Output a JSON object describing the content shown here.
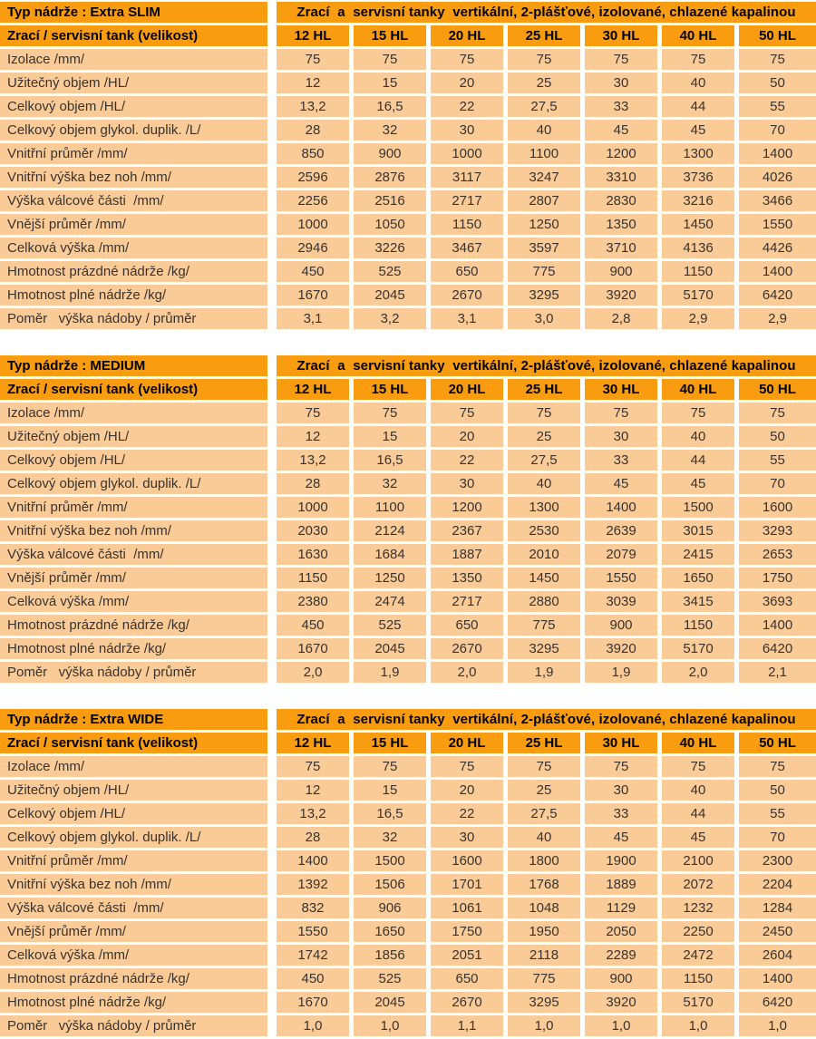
{
  "colors": {
    "header_orange": "#F99C0F",
    "row_peach": "#FBCB97",
    "separator_white": "#FFFFFF",
    "header_text": "#000000",
    "body_text": "#363330"
  },
  "shared": {
    "subtitle": "Zrací  a  servisní tanky  vertikální, 2-plášťové, izolované, chlazené kapalinou",
    "size_row_label": "Zrací / servisní tank (velikost)",
    "sizes": [
      "12 HL",
      "15 HL",
      "20 HL",
      "25 HL",
      "30 HL",
      "40 HL",
      "50 HL"
    ],
    "row_labels": [
      "Izolace /mm/",
      "Užitečný objem /HL/",
      "Celkový objem /HL/",
      "Celkový objem glykol. duplik. /L/",
      "Vnitřní průměr /mm/",
      "Vnitřní výška bez noh /mm/",
      "Výška válcové části  /mm/",
      "Vnější průměr /mm/",
      "Celková výška /mm/",
      "Hmotnost prázdné nádrže /kg/",
      "Hmotnost plné nádrže /kg/",
      "Poměr   výška nádoby / průměr"
    ]
  },
  "tables": [
    {
      "title": "Typ nádrže : Extra SLIM",
      "values": [
        [
          "75",
          "75",
          "75",
          "75",
          "75",
          "75",
          "75"
        ],
        [
          "12",
          "15",
          "20",
          "25",
          "30",
          "40",
          "50"
        ],
        [
          "13,2",
          "16,5",
          "22",
          "27,5",
          "33",
          "44",
          "55"
        ],
        [
          "28",
          "32",
          "30",
          "40",
          "45",
          "45",
          "70"
        ],
        [
          "850",
          "900",
          "1000",
          "1100",
          "1200",
          "1300",
          "1400"
        ],
        [
          "2596",
          "2876",
          "3117",
          "3247",
          "3310",
          "3736",
          "4026"
        ],
        [
          "2256",
          "2516",
          "2717",
          "2807",
          "2830",
          "3216",
          "3466"
        ],
        [
          "1000",
          "1050",
          "1150",
          "1250",
          "1350",
          "1450",
          "1550"
        ],
        [
          "2946",
          "3226",
          "3467",
          "3597",
          "3710",
          "4136",
          "4426"
        ],
        [
          "450",
          "525",
          "650",
          "775",
          "900",
          "1150",
          "1400"
        ],
        [
          "1670",
          "2045",
          "2670",
          "3295",
          "3920",
          "5170",
          "6420"
        ],
        [
          "3,1",
          "3,2",
          "3,1",
          "3,0",
          "2,8",
          "2,9",
          "2,9"
        ]
      ]
    },
    {
      "title": "Typ nádrže : MEDIUM",
      "values": [
        [
          "75",
          "75",
          "75",
          "75",
          "75",
          "75",
          "75"
        ],
        [
          "12",
          "15",
          "20",
          "25",
          "30",
          "40",
          "50"
        ],
        [
          "13,2",
          "16,5",
          "22",
          "27,5",
          "33",
          "44",
          "55"
        ],
        [
          "28",
          "32",
          "30",
          "40",
          "45",
          "45",
          "70"
        ],
        [
          "1000",
          "1100",
          "1200",
          "1300",
          "1400",
          "1500",
          "1600"
        ],
        [
          "2030",
          "2124",
          "2367",
          "2530",
          "2639",
          "3015",
          "3293"
        ],
        [
          "1630",
          "1684",
          "1887",
          "2010",
          "2079",
          "2415",
          "2653"
        ],
        [
          "1150",
          "1250",
          "1350",
          "1450",
          "1550",
          "1650",
          "1750"
        ],
        [
          "2380",
          "2474",
          "2717",
          "2880",
          "3039",
          "3415",
          "3693"
        ],
        [
          "450",
          "525",
          "650",
          "775",
          "900",
          "1150",
          "1400"
        ],
        [
          "1670",
          "2045",
          "2670",
          "3295",
          "3920",
          "5170",
          "6420"
        ],
        [
          "2,0",
          "1,9",
          "2,0",
          "1,9",
          "1,9",
          "2,0",
          "2,1"
        ]
      ]
    },
    {
      "title": "Typ nádrže : Extra WIDE",
      "values": [
        [
          "75",
          "75",
          "75",
          "75",
          "75",
          "75",
          "75"
        ],
        [
          "12",
          "15",
          "20",
          "25",
          "30",
          "40",
          "50"
        ],
        [
          "13,2",
          "16,5",
          "22",
          "27,5",
          "33",
          "44",
          "55"
        ],
        [
          "28",
          "32",
          "30",
          "40",
          "45",
          "45",
          "70"
        ],
        [
          "1400",
          "1500",
          "1600",
          "1800",
          "1900",
          "2100",
          "2300"
        ],
        [
          "1392",
          "1506",
          "1701",
          "1768",
          "1889",
          "2072",
          "2204"
        ],
        [
          "832",
          "906",
          "1061",
          "1048",
          "1129",
          "1232",
          "1284"
        ],
        [
          "1550",
          "1650",
          "1750",
          "1950",
          "2050",
          "2250",
          "2450"
        ],
        [
          "1742",
          "1856",
          "2051",
          "2118",
          "2289",
          "2472",
          "2604"
        ],
        [
          "450",
          "525",
          "650",
          "775",
          "900",
          "1150",
          "1400"
        ],
        [
          "1670",
          "2045",
          "2670",
          "3295",
          "3920",
          "5170",
          "6420"
        ],
        [
          "1,0",
          "1,0",
          "1,1",
          "1,0",
          "1,0",
          "1,0",
          "1,0"
        ]
      ]
    }
  ]
}
